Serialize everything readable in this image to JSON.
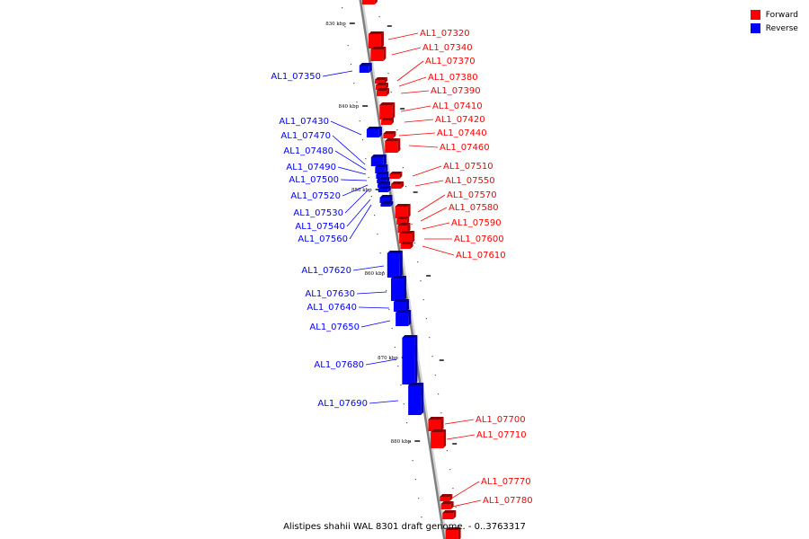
{
  "title": "Alistipes shahii WAL 8301 draft genome. - 0..3763317",
  "legend": [
    {
      "label": "Forward",
      "color": "#ff0000"
    },
    {
      "label": "Reverse",
      "color": "#0000ff"
    }
  ],
  "colors": {
    "forward": "#ff0000",
    "reverse": "#0000ff",
    "axis": "#808080"
  },
  "axis_ticks": [
    "830 kbp",
    "840 kbp",
    "850 kbp",
    "860 kbp",
    "870 kbp",
    "880 kbp"
  ],
  "genes": [
    {
      "id": "AL1_07320",
      "strand": "forward"
    },
    {
      "id": "AL1_07340",
      "strand": "forward"
    },
    {
      "id": "AL1_07370",
      "strand": "forward"
    },
    {
      "id": "AL1_07380",
      "strand": "forward"
    },
    {
      "id": "AL1_07390",
      "strand": "forward"
    },
    {
      "id": "AL1_07410",
      "strand": "forward"
    },
    {
      "id": "AL1_07420",
      "strand": "forward"
    },
    {
      "id": "AL1_07440",
      "strand": "forward"
    },
    {
      "id": "AL1_07460",
      "strand": "forward"
    },
    {
      "id": "AL1_07510",
      "strand": "forward"
    },
    {
      "id": "AL1_07550",
      "strand": "forward"
    },
    {
      "id": "AL1_07570",
      "strand": "forward"
    },
    {
      "id": "AL1_07580",
      "strand": "forward"
    },
    {
      "id": "AL1_07590",
      "strand": "forward"
    },
    {
      "id": "AL1_07600",
      "strand": "forward"
    },
    {
      "id": "AL1_07610",
      "strand": "forward"
    },
    {
      "id": "AL1_07700",
      "strand": "forward"
    },
    {
      "id": "AL1_07710",
      "strand": "forward"
    },
    {
      "id": "AL1_07770",
      "strand": "forward"
    },
    {
      "id": "AL1_07780",
      "strand": "forward"
    },
    {
      "id": "AL1_07350",
      "strand": "reverse"
    },
    {
      "id": "AL1_07430",
      "strand": "reverse"
    },
    {
      "id": "AL1_07470",
      "strand": "reverse"
    },
    {
      "id": "AL1_07480",
      "strand": "reverse"
    },
    {
      "id": "AL1_07490",
      "strand": "reverse"
    },
    {
      "id": "AL1_07500",
      "strand": "reverse"
    },
    {
      "id": "AL1_07520",
      "strand": "reverse"
    },
    {
      "id": "AL1_07530",
      "strand": "reverse"
    },
    {
      "id": "AL1_07540",
      "strand": "reverse"
    },
    {
      "id": "AL1_07560",
      "strand": "reverse"
    },
    {
      "id": "AL1_07620",
      "strand": "reverse"
    },
    {
      "id": "AL1_07630",
      "strand": "reverse"
    },
    {
      "id": "AL1_07640",
      "strand": "reverse"
    },
    {
      "id": "AL1_07650",
      "strand": "reverse"
    },
    {
      "id": "AL1_07680",
      "strand": "reverse"
    },
    {
      "id": "AL1_07690",
      "strand": "reverse"
    }
  ]
}
